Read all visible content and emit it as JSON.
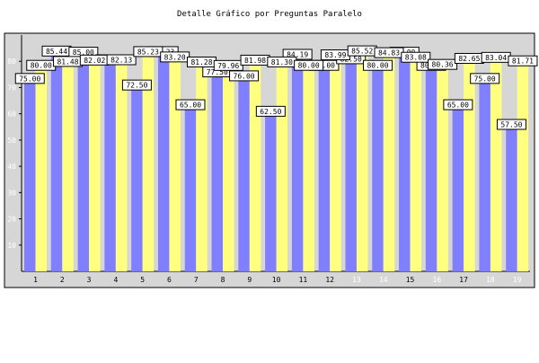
{
  "chart_data": {
    "type": "bar",
    "title": "Detalle Gráfico por Preguntas Paralelo",
    "xlabel": "",
    "ylabel": "",
    "ylim": [
      0,
      90
    ],
    "yticks": [
      10,
      20,
      30,
      40,
      50,
      60,
      70,
      80
    ],
    "grid": false,
    "legend": "none",
    "categories": [
      "1",
      "2",
      "3",
      "4",
      "5",
      "6",
      "7",
      "8",
      "9",
      "10",
      "11",
      "12",
      "13",
      "14",
      "15",
      "16",
      "17",
      "18",
      "19"
    ],
    "series": [
      {
        "color": "#8080ff",
        "values": [
          75.0,
          85.44,
          85.0,
          82.13,
          72.5,
          85.23,
          65.0,
          77.5,
          76.0,
          62.5,
          84.19,
          80.0,
          82.5,
          80.0,
          85.0,
          80.0,
          65.0,
          75.0,
          57.5
        ]
      },
      {
        "color": "#ffff80",
        "values": [
          80.0,
          81.48,
          82.02,
          82.13,
          85.23,
          83.2,
          81.28,
          79.96,
          81.98,
          81.3,
          80.0,
          83.99,
          85.52,
          84.83,
          83.08,
          80.36,
          82.65,
          83.04,
          81.71
        ]
      }
    ],
    "value_labels": [
      [
        "75.00",
        "85.44",
        "85.00",
        "82.13",
        "72.50",
        "85.23",
        "65.00",
        "77.50",
        "76.00",
        "62.50",
        "84.19",
        "80.00",
        "82.50",
        "80.00",
        "85.00",
        "80.00",
        "65.00",
        "75.00",
        "57.50"
      ],
      [
        "80.00",
        "81.48",
        "82.02",
        "82.13",
        "85.23",
        "83.20",
        "81.28",
        "79.96",
        "81.98",
        "81.30",
        "80.00",
        "83.99",
        "85.52",
        "84.83",
        "83.08",
        "80.36",
        "82.65",
        "83.04",
        "81.71"
      ]
    ],
    "colors": {
      "plot_background": "#d6d6d6",
      "frame_background": "#d6d6d6",
      "highlight_tick_label": "#ffffff"
    },
    "highlighted_ticks": [
      "13",
      "14",
      "16",
      "18",
      "19"
    ]
  }
}
